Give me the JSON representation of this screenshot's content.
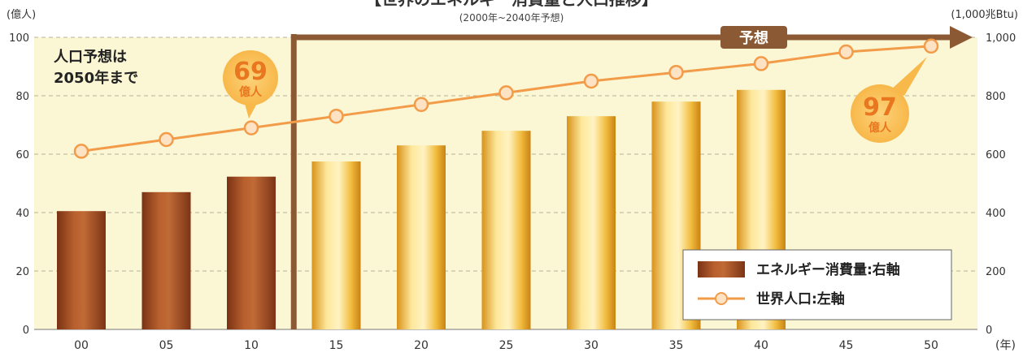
{
  "chart_data": {
    "type": "bar",
    "title": "【世界のエネルギー消費量と人口推移】",
    "subtitle": "(2000年~2040年予想)",
    "y_left_label": "(億人)",
    "y_right_label": "(1,000兆Btu)",
    "x_unit_label": "(年)",
    "categories": [
      "00",
      "05",
      "10",
      "15",
      "20",
      "25",
      "30",
      "35",
      "40",
      "45",
      "50"
    ],
    "ylim_left": [
      0,
      100
    ],
    "ylim_right": [
      0,
      1000
    ],
    "left_ticks": [
      "0",
      "20",
      "40",
      "60",
      "80",
      "100"
    ],
    "right_ticks": [
      "0",
      "200",
      "400",
      "600",
      "800",
      "1,000"
    ],
    "grid": true,
    "forecast_start_category": "15",
    "forecast_label": "予想",
    "series": [
      {
        "name": "エネルギー消費量:右軸",
        "type": "bar",
        "axis": "right",
        "values": [
          405,
          470,
          523,
          575,
          630,
          680,
          730,
          780,
          820,
          null,
          null
        ]
      },
      {
        "name": "世界人口:左軸",
        "type": "line",
        "axis": "left",
        "values": [
          61,
          65,
          69,
          73,
          77,
          81,
          85,
          88,
          91,
          95,
          97
        ]
      }
    ],
    "annotations": [
      {
        "text": "人口予想は\n2050年まで"
      },
      {
        "value": "69",
        "unit": "億人",
        "category": "10"
      },
      {
        "value": "97",
        "unit": "億人",
        "category": "50"
      }
    ],
    "colors": {
      "actual_bar": "#9a4a22",
      "forecast_bar": "#f0b83a",
      "line": "#f29c4a",
      "forecast_arrow": "#8b5a34",
      "background": "#fbf6d3",
      "bubble": "#fbbf55"
    },
    "legend_position": "bottom-right"
  }
}
